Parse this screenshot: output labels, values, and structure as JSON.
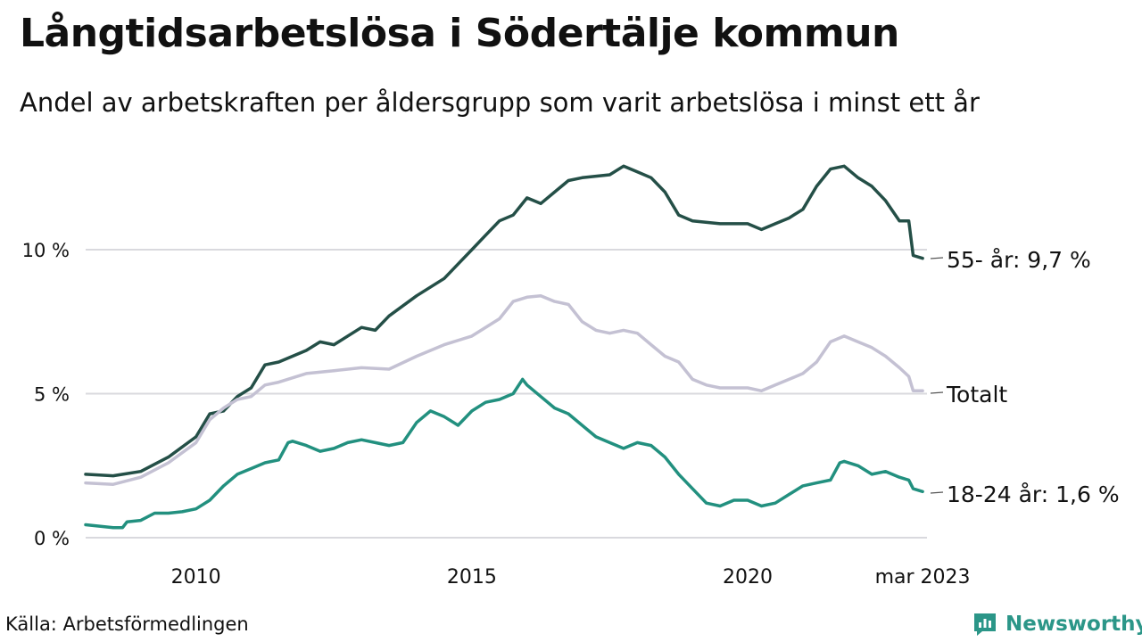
{
  "title": "Långtidsarbetslösa i Södertälje kommun",
  "subtitle": "Andel av arbetskraften per åldersgrupp som varit arbetslösa i minst ett år",
  "source": "Källa: Arbetsförmedlingen",
  "brand": "Newsworthy",
  "colors": {
    "s55": "#244f47",
    "total": "#c4c1d3",
    "s1824": "#22907f",
    "grid": "#d9d9de",
    "brand": "#2b9688"
  },
  "chart_data": {
    "type": "line",
    "title": "Långtidsarbetslösa i Södertälje kommun",
    "ylim": [
      0,
      13
    ],
    "xlim": [
      2008.0,
      2023.25
    ],
    "yticks": [
      {
        "value": 0,
        "label": "0 %"
      },
      {
        "value": 5,
        "label": "5 %"
      },
      {
        "value": 10,
        "label": "10 %"
      }
    ],
    "xticks": [
      {
        "value": 2010,
        "label": "2010"
      },
      {
        "value": 2015,
        "label": "2015"
      },
      {
        "value": 2020,
        "label": "2020"
      },
      {
        "value": 2023.17,
        "label": "mar 2023"
      }
    ],
    "grid": true,
    "series": [
      {
        "name": "55- år",
        "end_label": "55- år: 9,7 %",
        "color": "#244f47",
        "points": [
          [
            2008.0,
            2.2
          ],
          [
            2008.5,
            2.15
          ],
          [
            2009.0,
            2.3
          ],
          [
            2009.5,
            2.8
          ],
          [
            2010.0,
            3.5
          ],
          [
            2010.25,
            4.3
          ],
          [
            2010.5,
            4.4
          ],
          [
            2010.75,
            4.9
          ],
          [
            2011.0,
            5.2
          ],
          [
            2011.25,
            6.0
          ],
          [
            2011.5,
            6.1
          ],
          [
            2012.0,
            6.5
          ],
          [
            2012.25,
            6.8
          ],
          [
            2012.5,
            6.7
          ],
          [
            2013.0,
            7.3
          ],
          [
            2013.25,
            7.2
          ],
          [
            2013.5,
            7.7
          ],
          [
            2014.0,
            8.4
          ],
          [
            2014.5,
            9.0
          ],
          [
            2015.0,
            10.0
          ],
          [
            2015.25,
            10.5
          ],
          [
            2015.5,
            11.0
          ],
          [
            2015.75,
            11.2
          ],
          [
            2016.0,
            11.8
          ],
          [
            2016.25,
            11.6
          ],
          [
            2016.5,
            12.0
          ],
          [
            2016.75,
            12.4
          ],
          [
            2017.0,
            12.5
          ],
          [
            2017.5,
            12.6
          ],
          [
            2017.75,
            12.9
          ],
          [
            2018.0,
            12.7
          ],
          [
            2018.25,
            12.5
          ],
          [
            2018.5,
            12.0
          ],
          [
            2018.75,
            11.2
          ],
          [
            2019.0,
            11.0
          ],
          [
            2019.5,
            10.9
          ],
          [
            2020.0,
            10.9
          ],
          [
            2020.25,
            10.7
          ],
          [
            2020.5,
            10.9
          ],
          [
            2020.75,
            11.1
          ],
          [
            2021.0,
            11.4
          ],
          [
            2021.25,
            12.2
          ],
          [
            2021.5,
            12.8
          ],
          [
            2021.75,
            12.9
          ],
          [
            2022.0,
            12.5
          ],
          [
            2022.25,
            12.2
          ],
          [
            2022.5,
            11.7
          ],
          [
            2022.75,
            11.0
          ],
          [
            2022.92,
            11.0
          ],
          [
            2023.0,
            9.8
          ],
          [
            2023.17,
            9.7
          ]
        ]
      },
      {
        "name": "Totalt",
        "end_label": "Totalt",
        "color": "#c4c1d3",
        "points": [
          [
            2008.0,
            1.9
          ],
          [
            2008.5,
            1.85
          ],
          [
            2009.0,
            2.1
          ],
          [
            2009.5,
            2.6
          ],
          [
            2010.0,
            3.3
          ],
          [
            2010.25,
            4.1
          ],
          [
            2010.5,
            4.5
          ],
          [
            2010.75,
            4.8
          ],
          [
            2011.0,
            4.9
          ],
          [
            2011.25,
            5.3
          ],
          [
            2011.5,
            5.4
          ],
          [
            2012.0,
            5.7
          ],
          [
            2012.5,
            5.8
          ],
          [
            2013.0,
            5.9
          ],
          [
            2013.5,
            5.85
          ],
          [
            2014.0,
            6.3
          ],
          [
            2014.5,
            6.7
          ],
          [
            2015.0,
            7.0
          ],
          [
            2015.5,
            7.6
          ],
          [
            2015.75,
            8.2
          ],
          [
            2016.0,
            8.35
          ],
          [
            2016.25,
            8.4
          ],
          [
            2016.5,
            8.2
          ],
          [
            2016.75,
            8.1
          ],
          [
            2017.0,
            7.5
          ],
          [
            2017.25,
            7.2
          ],
          [
            2017.5,
            7.1
          ],
          [
            2017.75,
            7.2
          ],
          [
            2018.0,
            7.1
          ],
          [
            2018.25,
            6.7
          ],
          [
            2018.5,
            6.3
          ],
          [
            2018.75,
            6.1
          ],
          [
            2019.0,
            5.5
          ],
          [
            2019.25,
            5.3
          ],
          [
            2019.5,
            5.2
          ],
          [
            2020.0,
            5.2
          ],
          [
            2020.25,
            5.1
          ],
          [
            2020.5,
            5.3
          ],
          [
            2020.75,
            5.5
          ],
          [
            2021.0,
            5.7
          ],
          [
            2021.25,
            6.1
          ],
          [
            2021.5,
            6.8
          ],
          [
            2021.75,
            7.0
          ],
          [
            2022.0,
            6.8
          ],
          [
            2022.25,
            6.6
          ],
          [
            2022.5,
            6.3
          ],
          [
            2022.75,
            5.9
          ],
          [
            2022.92,
            5.6
          ],
          [
            2023.0,
            5.1
          ],
          [
            2023.17,
            5.1
          ]
        ]
      },
      {
        "name": "18-24 år",
        "end_label": "18-24 år: 1,6 %",
        "color": "#22907f",
        "points": [
          [
            2008.0,
            0.45
          ],
          [
            2008.25,
            0.4
          ],
          [
            2008.5,
            0.35
          ],
          [
            2008.67,
            0.35
          ],
          [
            2008.75,
            0.55
          ],
          [
            2009.0,
            0.6
          ],
          [
            2009.25,
            0.85
          ],
          [
            2009.5,
            0.85
          ],
          [
            2009.75,
            0.9
          ],
          [
            2010.0,
            1.0
          ],
          [
            2010.25,
            1.3
          ],
          [
            2010.5,
            1.8
          ],
          [
            2010.75,
            2.2
          ],
          [
            2011.0,
            2.4
          ],
          [
            2011.25,
            2.6
          ],
          [
            2011.5,
            2.7
          ],
          [
            2011.67,
            3.3
          ],
          [
            2011.75,
            3.35
          ],
          [
            2012.0,
            3.2
          ],
          [
            2012.25,
            3.0
          ],
          [
            2012.5,
            3.1
          ],
          [
            2012.75,
            3.3
          ],
          [
            2013.0,
            3.4
          ],
          [
            2013.25,
            3.3
          ],
          [
            2013.5,
            3.2
          ],
          [
            2013.75,
            3.3
          ],
          [
            2014.0,
            4.0
          ],
          [
            2014.25,
            4.4
          ],
          [
            2014.5,
            4.2
          ],
          [
            2014.75,
            3.9
          ],
          [
            2015.0,
            4.4
          ],
          [
            2015.25,
            4.7
          ],
          [
            2015.5,
            4.8
          ],
          [
            2015.75,
            5.0
          ],
          [
            2015.92,
            5.5
          ],
          [
            2016.0,
            5.3
          ],
          [
            2016.25,
            4.9
          ],
          [
            2016.5,
            4.5
          ],
          [
            2016.75,
            4.3
          ],
          [
            2017.0,
            3.9
          ],
          [
            2017.25,
            3.5
          ],
          [
            2017.5,
            3.3
          ],
          [
            2017.75,
            3.1
          ],
          [
            2018.0,
            3.3
          ],
          [
            2018.25,
            3.2
          ],
          [
            2018.5,
            2.8
          ],
          [
            2018.75,
            2.2
          ],
          [
            2019.0,
            1.7
          ],
          [
            2019.25,
            1.2
          ],
          [
            2019.5,
            1.1
          ],
          [
            2019.75,
            1.3
          ],
          [
            2020.0,
            1.3
          ],
          [
            2020.25,
            1.1
          ],
          [
            2020.5,
            1.2
          ],
          [
            2020.75,
            1.5
          ],
          [
            2021.0,
            1.8
          ],
          [
            2021.25,
            1.9
          ],
          [
            2021.5,
            2.0
          ],
          [
            2021.67,
            2.6
          ],
          [
            2021.75,
            2.65
          ],
          [
            2022.0,
            2.5
          ],
          [
            2022.25,
            2.2
          ],
          [
            2022.5,
            2.3
          ],
          [
            2022.75,
            2.1
          ],
          [
            2022.92,
            2.0
          ],
          [
            2023.0,
            1.7
          ],
          [
            2023.17,
            1.6
          ]
        ]
      }
    ]
  }
}
